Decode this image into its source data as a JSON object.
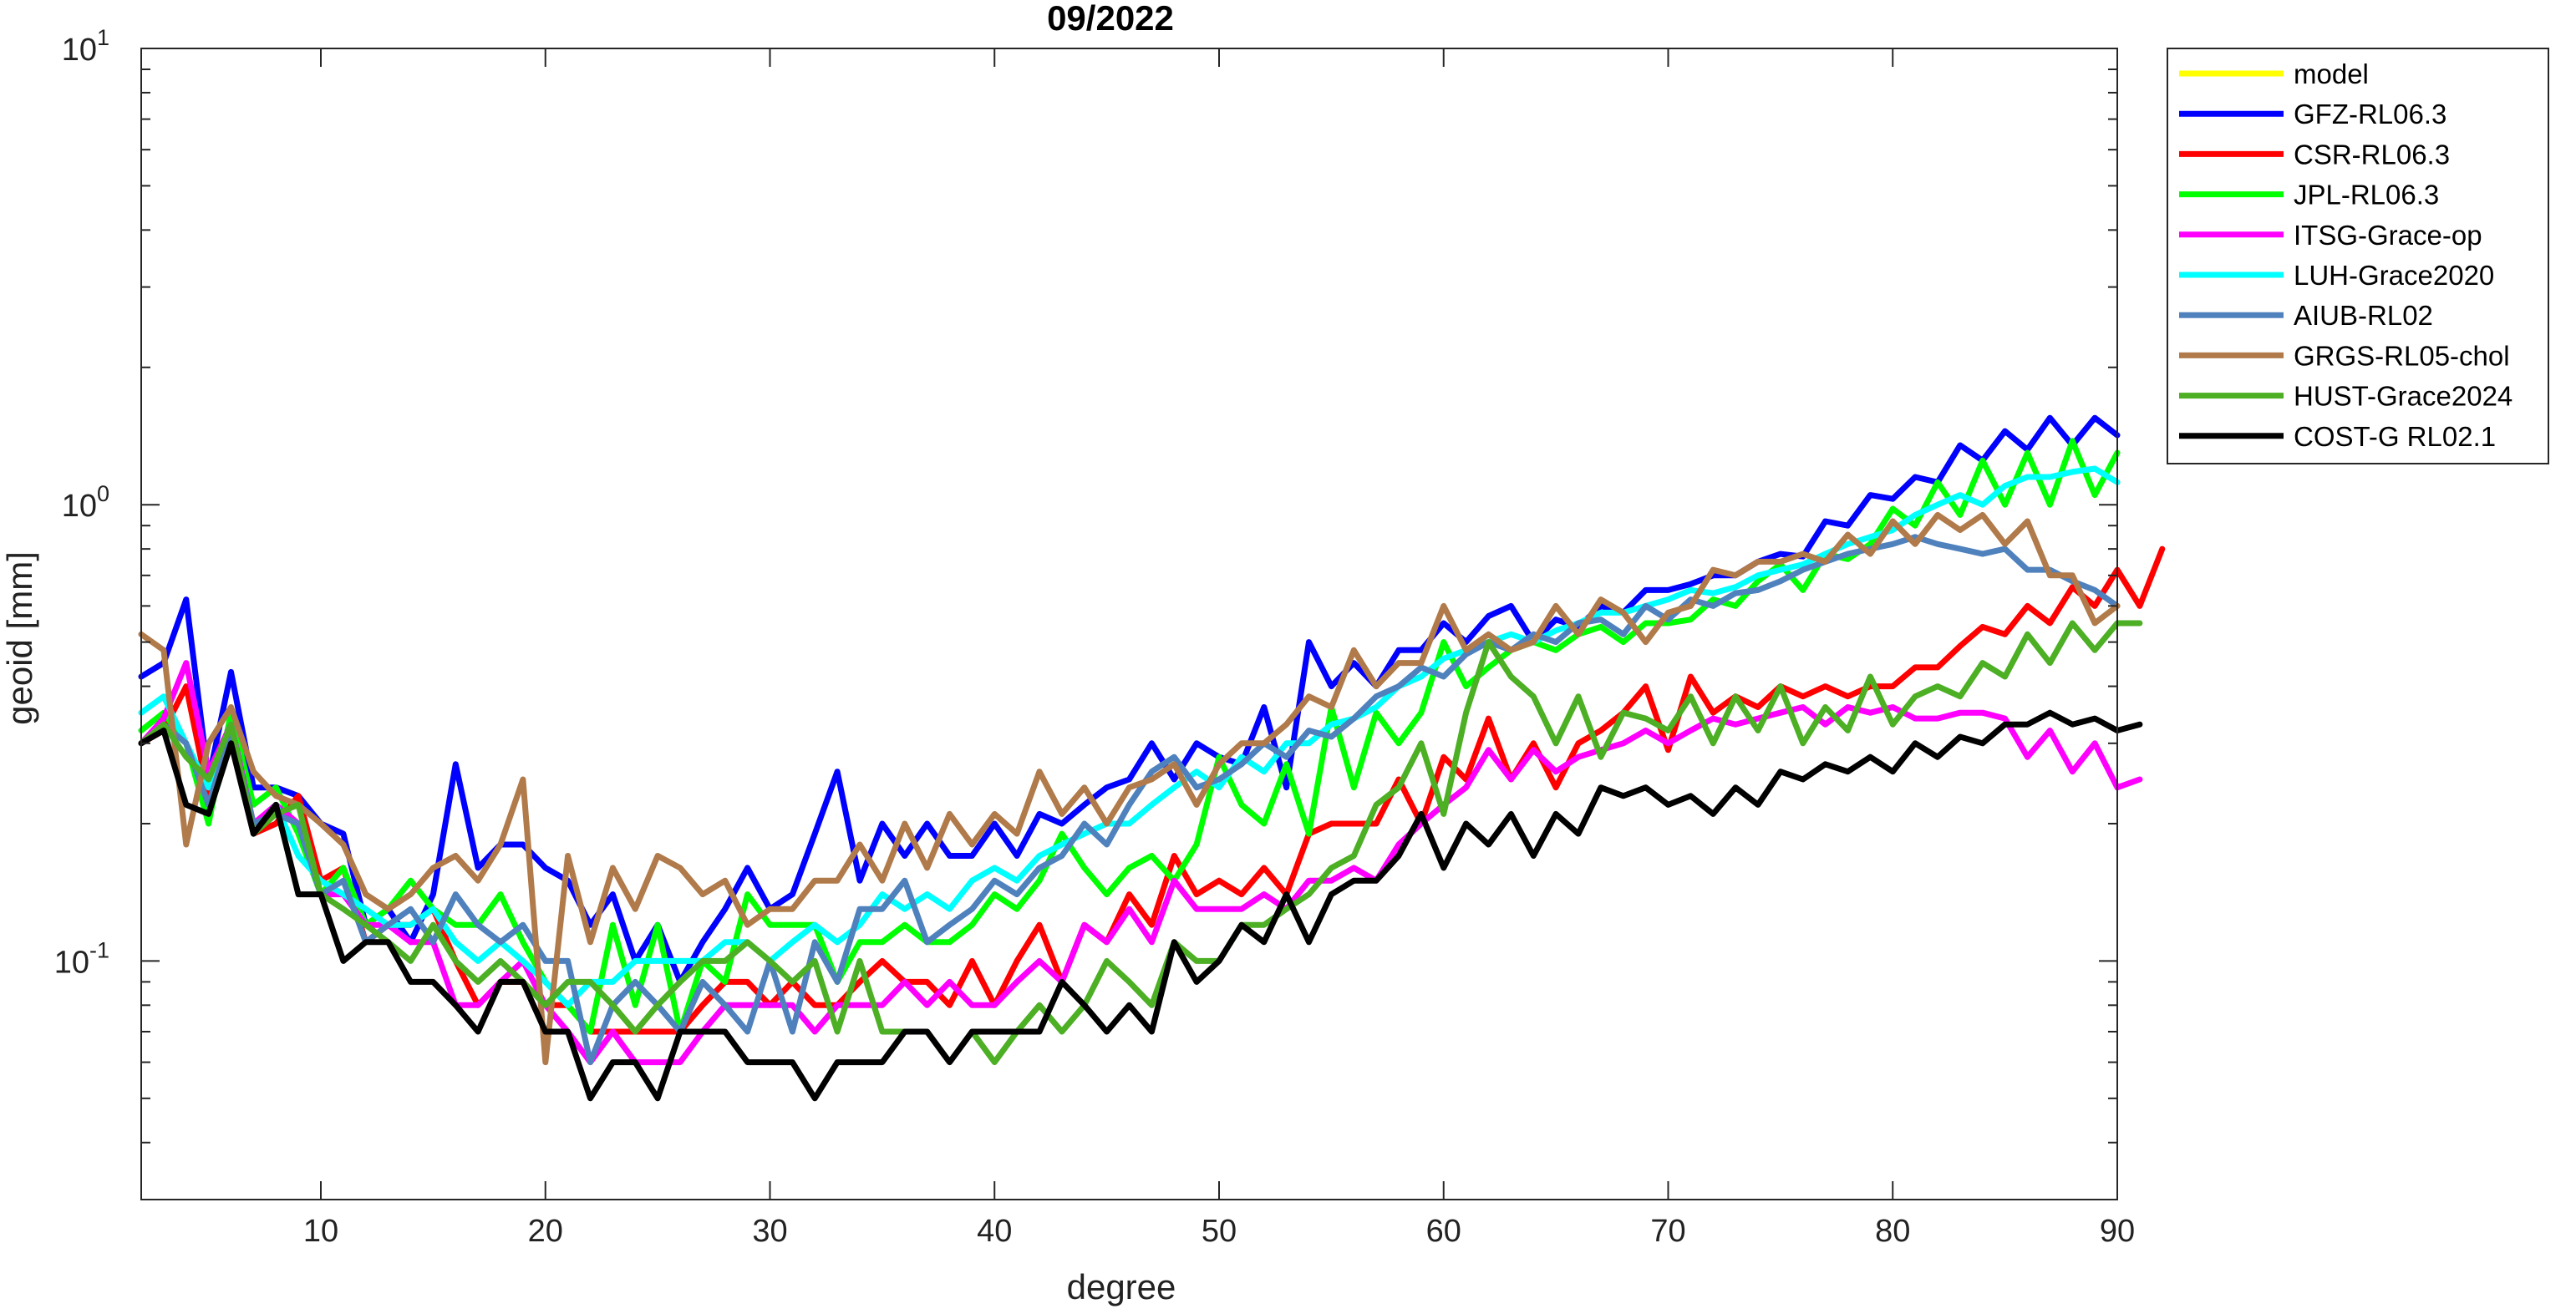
{
  "chart_data": {
    "type": "line",
    "title": "09/2022",
    "xlabel": "degree",
    "ylabel": "geoid [mm]",
    "y_scale": "log",
    "xlim": [
      2,
      90
    ],
    "ylim": [
      0.03,
      10
    ],
    "x_ticks": [
      10,
      20,
      30,
      40,
      50,
      60,
      70,
      80,
      90
    ],
    "y_ticks": [
      {
        "value": 0.1,
        "base": "10",
        "exp": "-1"
      },
      {
        "value": 1,
        "base": "10",
        "exp": "0"
      },
      {
        "value": 10,
        "base": "10",
        "exp": "1"
      }
    ],
    "grid": false,
    "legend_position": "outside-top-right",
    "x_start": 2,
    "series": [
      {
        "name": "model",
        "color": "#ffff00",
        "values": []
      },
      {
        "name": "GFZ-RL06.3",
        "color": "#0000ff",
        "values": [
          0.42,
          0.45,
          0.62,
          0.25,
          0.43,
          0.24,
          0.24,
          0.23,
          0.2,
          0.19,
          0.12,
          0.13,
          0.11,
          0.14,
          0.27,
          0.16,
          0.18,
          0.18,
          0.16,
          0.15,
          0.12,
          0.14,
          0.1,
          0.12,
          0.09,
          0.11,
          0.13,
          0.16,
          0.13,
          0.14,
          0.19,
          0.26,
          0.15,
          0.2,
          0.17,
          0.2,
          0.17,
          0.17,
          0.2,
          0.17,
          0.21,
          0.2,
          0.22,
          0.24,
          0.25,
          0.3,
          0.25,
          0.3,
          0.28,
          0.27,
          0.36,
          0.24,
          0.5,
          0.4,
          0.45,
          0.4,
          0.48,
          0.48,
          0.55,
          0.5,
          0.57,
          0.6,
          0.5,
          0.56,
          0.54,
          0.6,
          0.58,
          0.65,
          0.65,
          0.67,
          0.7,
          0.7,
          0.75,
          0.78,
          0.77,
          0.92,
          0.9,
          1.05,
          1.03,
          1.15,
          1.12,
          1.35,
          1.25,
          1.45,
          1.32,
          1.55,
          1.35,
          1.55,
          1.42
        ]
      },
      {
        "name": "CSR-RL06.3",
        "color": "#ff0000",
        "values": [
          0.3,
          0.32,
          0.4,
          0.23,
          0.32,
          0.19,
          0.2,
          0.23,
          0.15,
          0.16,
          0.11,
          0.12,
          0.12,
          0.13,
          0.1,
          0.08,
          0.09,
          0.09,
          0.08,
          0.08,
          0.07,
          0.07,
          0.07,
          0.07,
          0.07,
          0.08,
          0.09,
          0.09,
          0.08,
          0.09,
          0.08,
          0.08,
          0.09,
          0.1,
          0.09,
          0.09,
          0.08,
          0.1,
          0.08,
          0.1,
          0.12,
          0.09,
          0.12,
          0.11,
          0.14,
          0.12,
          0.17,
          0.14,
          0.15,
          0.14,
          0.16,
          0.14,
          0.19,
          0.2,
          0.2,
          0.2,
          0.25,
          0.2,
          0.28,
          0.25,
          0.34,
          0.25,
          0.3,
          0.24,
          0.3,
          0.32,
          0.35,
          0.4,
          0.29,
          0.42,
          0.35,
          0.38,
          0.36,
          0.4,
          0.38,
          0.4,
          0.38,
          0.4,
          0.4,
          0.44,
          0.44,
          0.49,
          0.54,
          0.52,
          0.6,
          0.55,
          0.66,
          0.6,
          0.72,
          0.6,
          0.8
        ]
      },
      {
        "name": "JPL-RL06.3",
        "color": "#00ff00",
        "values": [
          0.32,
          0.35,
          0.3,
          0.2,
          0.35,
          0.22,
          0.24,
          0.19,
          0.14,
          0.16,
          0.12,
          0.13,
          0.15,
          0.13,
          0.12,
          0.12,
          0.14,
          0.11,
          0.09,
          0.08,
          0.07,
          0.12,
          0.08,
          0.12,
          0.07,
          0.1,
          0.09,
          0.14,
          0.12,
          0.12,
          0.12,
          0.09,
          0.11,
          0.11,
          0.12,
          0.11,
          0.11,
          0.12,
          0.14,
          0.13,
          0.15,
          0.19,
          0.16,
          0.14,
          0.16,
          0.17,
          0.15,
          0.18,
          0.28,
          0.22,
          0.2,
          0.27,
          0.19,
          0.36,
          0.24,
          0.35,
          0.3,
          0.35,
          0.5,
          0.4,
          0.44,
          0.48,
          0.5,
          0.48,
          0.52,
          0.54,
          0.5,
          0.55,
          0.55,
          0.56,
          0.62,
          0.6,
          0.68,
          0.74,
          0.65,
          0.78,
          0.76,
          0.82,
          0.98,
          0.9,
          1.12,
          0.95,
          1.25,
          1.0,
          1.3,
          1.0,
          1.38,
          1.05,
          1.3
        ]
      },
      {
        "name": "ITSG-Grace-op",
        "color": "#ff00ff",
        "values": [
          0.3,
          0.34,
          0.45,
          0.26,
          0.33,
          0.2,
          0.22,
          0.2,
          0.14,
          0.14,
          0.12,
          0.12,
          0.11,
          0.11,
          0.08,
          0.08,
          0.09,
          0.1,
          0.08,
          0.07,
          0.06,
          0.07,
          0.06,
          0.06,
          0.06,
          0.07,
          0.08,
          0.08,
          0.08,
          0.08,
          0.07,
          0.08,
          0.08,
          0.08,
          0.09,
          0.08,
          0.09,
          0.08,
          0.08,
          0.09,
          0.1,
          0.09,
          0.12,
          0.11,
          0.13,
          0.11,
          0.15,
          0.13,
          0.13,
          0.13,
          0.14,
          0.13,
          0.15,
          0.15,
          0.16,
          0.15,
          0.18,
          0.2,
          0.22,
          0.24,
          0.29,
          0.25,
          0.29,
          0.26,
          0.28,
          0.29,
          0.3,
          0.32,
          0.3,
          0.32,
          0.34,
          0.33,
          0.34,
          0.35,
          0.36,
          0.33,
          0.36,
          0.35,
          0.36,
          0.34,
          0.34,
          0.35,
          0.35,
          0.34,
          0.28,
          0.32,
          0.26,
          0.3,
          0.24,
          0.25
        ]
      },
      {
        "name": "LUH-Grace2020",
        "color": "#00ffff",
        "values": [
          0.35,
          0.38,
          0.3,
          0.24,
          0.33,
          0.19,
          0.22,
          0.17,
          0.15,
          0.14,
          0.13,
          0.12,
          0.12,
          0.13,
          0.11,
          0.1,
          0.11,
          0.1,
          0.09,
          0.08,
          0.09,
          0.09,
          0.1,
          0.1,
          0.1,
          0.1,
          0.11,
          0.11,
          0.1,
          0.11,
          0.12,
          0.11,
          0.12,
          0.14,
          0.13,
          0.14,
          0.13,
          0.15,
          0.16,
          0.15,
          0.17,
          0.18,
          0.19,
          0.2,
          0.2,
          0.22,
          0.24,
          0.26,
          0.24,
          0.28,
          0.26,
          0.3,
          0.3,
          0.33,
          0.34,
          0.36,
          0.4,
          0.42,
          0.46,
          0.48,
          0.5,
          0.52,
          0.5,
          0.53,
          0.55,
          0.58,
          0.58,
          0.6,
          0.62,
          0.65,
          0.64,
          0.66,
          0.7,
          0.72,
          0.74,
          0.78,
          0.82,
          0.85,
          0.88,
          0.95,
          1.0,
          1.05,
          1.0,
          1.1,
          1.15,
          1.15,
          1.18,
          1.2,
          1.12
        ]
      },
      {
        "name": "AIUB-RL02",
        "color": "#4f81bd",
        "values": [
          0.3,
          0.33,
          0.3,
          0.22,
          0.32,
          0.2,
          0.21,
          0.2,
          0.14,
          0.15,
          0.11,
          0.12,
          0.13,
          0.11,
          0.14,
          0.12,
          0.11,
          0.12,
          0.1,
          0.1,
          0.06,
          0.08,
          0.09,
          0.08,
          0.07,
          0.09,
          0.08,
          0.07,
          0.1,
          0.07,
          0.11,
          0.09,
          0.13,
          0.13,
          0.15,
          0.11,
          0.12,
          0.13,
          0.15,
          0.14,
          0.16,
          0.17,
          0.2,
          0.18,
          0.22,
          0.26,
          0.28,
          0.24,
          0.25,
          0.27,
          0.3,
          0.28,
          0.32,
          0.31,
          0.34,
          0.38,
          0.4,
          0.44,
          0.42,
          0.47,
          0.5,
          0.48,
          0.52,
          0.5,
          0.55,
          0.56,
          0.52,
          0.6,
          0.56,
          0.62,
          0.6,
          0.64,
          0.65,
          0.68,
          0.72,
          0.75,
          0.78,
          0.8,
          0.82,
          0.85,
          0.82,
          0.8,
          0.78,
          0.8,
          0.72,
          0.72,
          0.68,
          0.65,
          0.6
        ]
      },
      {
        "name": "GRGS-RL05-chol",
        "color": "#b07a4a",
        "values": [
          0.52,
          0.48,
          0.18,
          0.3,
          0.36,
          0.26,
          0.23,
          0.22,
          0.2,
          0.18,
          0.14,
          0.13,
          0.14,
          0.16,
          0.17,
          0.15,
          0.18,
          0.25,
          0.06,
          0.17,
          0.11,
          0.16,
          0.13,
          0.17,
          0.16,
          0.14,
          0.15,
          0.12,
          0.13,
          0.13,
          0.15,
          0.15,
          0.18,
          0.15,
          0.2,
          0.16,
          0.21,
          0.18,
          0.21,
          0.19,
          0.26,
          0.21,
          0.24,
          0.2,
          0.24,
          0.25,
          0.27,
          0.22,
          0.27,
          0.3,
          0.3,
          0.33,
          0.38,
          0.36,
          0.48,
          0.4,
          0.45,
          0.45,
          0.6,
          0.48,
          0.52,
          0.48,
          0.5,
          0.6,
          0.52,
          0.62,
          0.58,
          0.5,
          0.58,
          0.6,
          0.72,
          0.7,
          0.75,
          0.75,
          0.78,
          0.75,
          0.86,
          0.78,
          0.92,
          0.82,
          0.95,
          0.88,
          0.95,
          0.82,
          0.92,
          0.7,
          0.7,
          0.55,
          0.6
        ]
      },
      {
        "name": "HUST-Grace2024",
        "color": "#4caf24",
        "values": [
          0.3,
          0.33,
          0.28,
          0.25,
          0.33,
          0.19,
          0.21,
          0.22,
          0.14,
          0.13,
          0.12,
          0.11,
          0.1,
          0.12,
          0.1,
          0.09,
          0.1,
          0.09,
          0.08,
          0.09,
          0.09,
          0.08,
          0.07,
          0.08,
          0.09,
          0.1,
          0.1,
          0.11,
          0.1,
          0.09,
          0.1,
          0.07,
          0.1,
          0.07,
          0.07,
          0.07,
          0.06,
          0.07,
          0.06,
          0.07,
          0.08,
          0.07,
          0.08,
          0.1,
          0.09,
          0.08,
          0.11,
          0.1,
          0.1,
          0.12,
          0.12,
          0.13,
          0.14,
          0.16,
          0.17,
          0.22,
          0.24,
          0.3,
          0.21,
          0.35,
          0.5,
          0.42,
          0.38,
          0.3,
          0.38,
          0.28,
          0.35,
          0.34,
          0.32,
          0.38,
          0.3,
          0.38,
          0.32,
          0.4,
          0.3,
          0.36,
          0.32,
          0.42,
          0.33,
          0.38,
          0.4,
          0.38,
          0.45,
          0.42,
          0.52,
          0.45,
          0.55,
          0.48,
          0.55,
          0.55
        ]
      },
      {
        "name": "COST-G RL02.1",
        "color": "#000000",
        "values": [
          0.3,
          0.32,
          0.22,
          0.21,
          0.3,
          0.19,
          0.22,
          0.14,
          0.14,
          0.1,
          0.11,
          0.11,
          0.09,
          0.09,
          0.08,
          0.07,
          0.09,
          0.09,
          0.07,
          0.07,
          0.05,
          0.06,
          0.06,
          0.05,
          0.07,
          0.07,
          0.07,
          0.06,
          0.06,
          0.06,
          0.05,
          0.06,
          0.06,
          0.06,
          0.07,
          0.07,
          0.06,
          0.07,
          0.07,
          0.07,
          0.07,
          0.09,
          0.08,
          0.07,
          0.08,
          0.07,
          0.11,
          0.09,
          0.1,
          0.12,
          0.11,
          0.14,
          0.11,
          0.14,
          0.15,
          0.15,
          0.17,
          0.21,
          0.16,
          0.2,
          0.18,
          0.21,
          0.17,
          0.21,
          0.19,
          0.24,
          0.23,
          0.24,
          0.22,
          0.23,
          0.21,
          0.24,
          0.22,
          0.26,
          0.25,
          0.27,
          0.26,
          0.28,
          0.26,
          0.3,
          0.28,
          0.31,
          0.3,
          0.33,
          0.33,
          0.35,
          0.33,
          0.34,
          0.32,
          0.33
        ]
      }
    ]
  }
}
